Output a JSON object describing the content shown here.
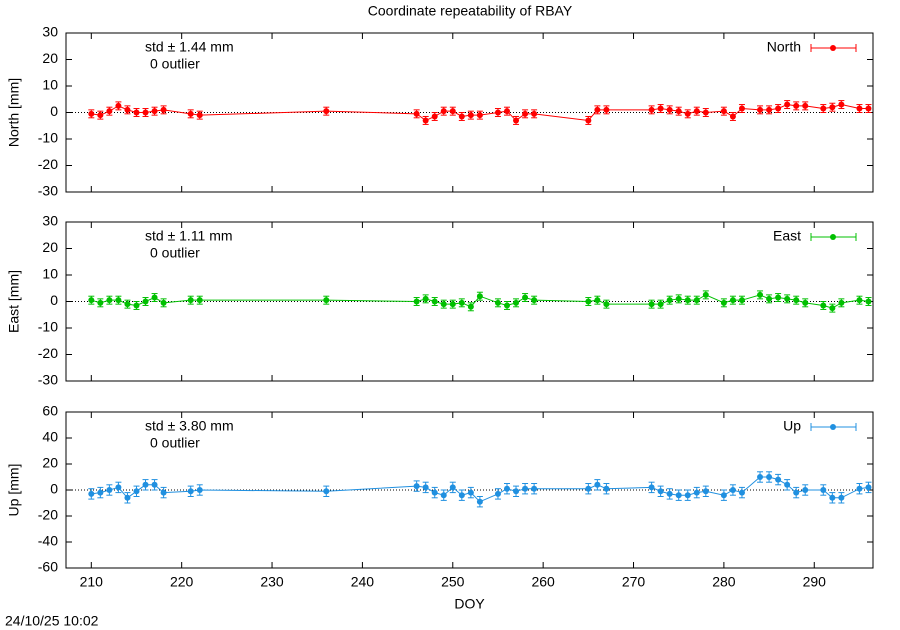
{
  "title": "Coordinate repeatability of RBAY",
  "timestamp": "24/10/25 10:02",
  "chart_data": [
    {
      "type": "line",
      "ylabel": "North [mm]",
      "ylim": [
        -30,
        30
      ],
      "yticks": [
        -30,
        -20,
        -10,
        0,
        10,
        20,
        30
      ],
      "xlim": [
        207.2,
        296.5
      ],
      "xticks": [
        210,
        220,
        230,
        240,
        250,
        260,
        270,
        280,
        290
      ],
      "annotations": [
        "std ± 1.44 mm",
        "0 outlier"
      ],
      "annotation_color": "#ff0000",
      "x": [
        210,
        211,
        212,
        213,
        214,
        215,
        216,
        217,
        218,
        221,
        222,
        236,
        246,
        247,
        248,
        249,
        250,
        251,
        252,
        253,
        255,
        256,
        257,
        258,
        259,
        265,
        266,
        267,
        272,
        273,
        274,
        275,
        276,
        277,
        278,
        280,
        281,
        282,
        284,
        285,
        286,
        287,
        288,
        289,
        291,
        292,
        293,
        295,
        296
      ],
      "series": [
        {
          "name": "North",
          "color": "#ff0000",
          "values": [
            -0.5,
            -1,
            0.5,
            2.5,
            1,
            0,
            0,
            0.5,
            1,
            -0.5,
            -1,
            0.5,
            -0.5,
            -3,
            -1.5,
            0.5,
            0.5,
            -1.5,
            -1,
            -1,
            0,
            0.5,
            -3,
            -0.5,
            -0.5,
            -3,
            1,
            1,
            1,
            1.5,
            1,
            0.5,
            -0.5,
            0.5,
            0,
            0.5,
            -1.5,
            1.5,
            1,
            1,
            1.5,
            3,
            2.5,
            2.5,
            1.5,
            2,
            3,
            1.5,
            1.5
          ],
          "errors": [
            1.5,
            1.5,
            1.5,
            1.5,
            1.5,
            1.5,
            1.5,
            1.5,
            1.5,
            1.5,
            1.5,
            1.5,
            1.5,
            1.5,
            1.5,
            1.5,
            1.5,
            1.5,
            1.5,
            1.5,
            1.5,
            1.5,
            1.5,
            1.5,
            1.5,
            1.5,
            1.5,
            1.5,
            1.5,
            1.5,
            1.5,
            1.5,
            1.5,
            1.5,
            1.5,
            1.5,
            1.5,
            1.5,
            1.5,
            1.5,
            1.5,
            1.5,
            1.5,
            1.5,
            1.5,
            1.5,
            1.5,
            1.5,
            1.5
          ]
        }
      ]
    },
    {
      "type": "line",
      "ylabel": "East [mm]",
      "ylim": [
        -30,
        30
      ],
      "yticks": [
        -30,
        -20,
        -10,
        0,
        10,
        20,
        30
      ],
      "xlim": [
        207.2,
        296.5
      ],
      "xticks": [
        210,
        220,
        230,
        240,
        250,
        260,
        270,
        280,
        290
      ],
      "annotations": [
        "std ± 1.11 mm",
        "0 outlier"
      ],
      "annotation_color": "#00c000",
      "x": [
        210,
        211,
        212,
        213,
        214,
        215,
        216,
        217,
        218,
        221,
        222,
        236,
        246,
        247,
        248,
        249,
        250,
        251,
        252,
        253,
        255,
        256,
        257,
        258,
        259,
        265,
        266,
        267,
        272,
        273,
        274,
        275,
        276,
        277,
        278,
        280,
        281,
        282,
        284,
        285,
        286,
        287,
        288,
        289,
        291,
        292,
        293,
        295,
        296
      ],
      "series": [
        {
          "name": "East",
          "color": "#00c000",
          "values": [
            0.5,
            -0.5,
            0.5,
            0.5,
            -1,
            -1.5,
            0,
            1.5,
            -0.5,
            0.5,
            0.5,
            0.5,
            0,
            1,
            0,
            -1,
            -1,
            -0.5,
            -2,
            2,
            -0.5,
            -1.5,
            -0.5,
            1.5,
            0.5,
            0,
            0.5,
            -1,
            -1,
            -1,
            0.5,
            1,
            0.5,
            0.5,
            2.5,
            -0.5,
            0.5,
            0.5,
            2.5,
            1,
            1.5,
            1,
            0.5,
            -0.5,
            -1.5,
            -2.5,
            -0.5,
            0.5,
            0
          ],
          "errors": [
            1.5,
            1.5,
            1.5,
            1.5,
            1.5,
            1.5,
            1.5,
            1.5,
            1.5,
            1.5,
            1.5,
            1.5,
            1.5,
            1.5,
            1.5,
            1.5,
            1.5,
            1.5,
            1.5,
            1.5,
            1.5,
            1.5,
            1.5,
            1.5,
            1.5,
            1.5,
            1.5,
            1.5,
            1.5,
            1.5,
            1.5,
            1.5,
            1.5,
            1.5,
            1.5,
            1.5,
            1.5,
            1.5,
            1.5,
            1.5,
            1.5,
            1.5,
            1.5,
            1.5,
            1.5,
            1.5,
            1.5,
            1.5,
            1.5
          ]
        }
      ]
    },
    {
      "type": "line",
      "ylabel": "Up [mm]",
      "xlabel": "DOY",
      "ylim": [
        -60,
        60
      ],
      "yticks": [
        -60,
        -40,
        -20,
        0,
        20,
        40,
        60
      ],
      "xlim": [
        207.2,
        296.5
      ],
      "xticks": [
        210,
        220,
        230,
        240,
        250,
        260,
        270,
        280,
        290
      ],
      "annotations": [
        "std ± 3.80 mm",
        "0 outlier"
      ],
      "annotation_color": "#2090e0",
      "x": [
        210,
        211,
        212,
        213,
        214,
        215,
        216,
        217,
        218,
        221,
        222,
        236,
        246,
        247,
        248,
        249,
        250,
        251,
        252,
        253,
        255,
        256,
        257,
        258,
        259,
        265,
        266,
        267,
        272,
        273,
        274,
        275,
        276,
        277,
        278,
        280,
        281,
        282,
        284,
        285,
        286,
        287,
        288,
        289,
        291,
        292,
        293,
        295,
        296
      ],
      "series": [
        {
          "name": "Up",
          "color": "#2090e0",
          "values": [
            -3,
            -2,
            0,
            2,
            -6,
            -1,
            4,
            4,
            -2,
            -1,
            0,
            -1,
            3,
            2,
            -2,
            -4,
            2,
            -4,
            -2,
            -9,
            -3,
            1,
            -1,
            1,
            1,
            1,
            4,
            1,
            2,
            -1,
            -3,
            -4,
            -4,
            -2,
            -1,
            -4,
            0,
            -2,
            10,
            10,
            8,
            4,
            -2,
            0,
            0,
            -6,
            -6,
            1,
            2
          ],
          "errors": [
            4,
            4,
            4,
            4,
            4,
            4,
            4,
            4,
            4,
            4,
            4,
            4,
            4,
            4,
            4,
            4,
            4,
            4,
            4,
            4,
            4,
            4,
            4,
            4,
            4,
            4,
            4,
            4,
            4,
            4,
            4,
            4,
            4,
            4,
            4,
            4,
            4,
            4,
            4,
            4,
            4,
            4,
            4,
            4,
            4,
            4,
            4,
            4,
            4
          ]
        }
      ]
    }
  ]
}
